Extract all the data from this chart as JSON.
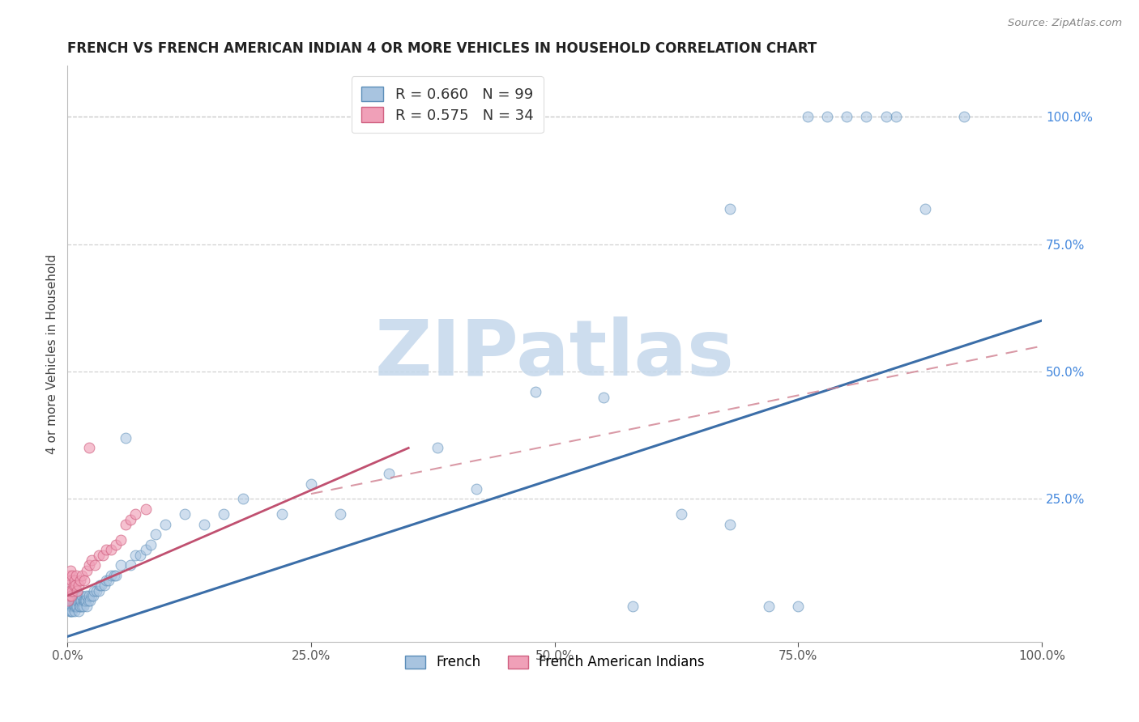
{
  "title": "FRENCH VS FRENCH AMERICAN INDIAN 4 OR MORE VEHICLES IN HOUSEHOLD CORRELATION CHART",
  "source": "Source: ZipAtlas.com",
  "ylabel": "4 or more Vehicles in Household",
  "xlim": [
    0.0,
    1.0
  ],
  "ylim": [
    -0.03,
    1.1
  ],
  "xtick_labels": [
    "0.0%",
    "25.0%",
    "50.0%",
    "75.0%",
    "100.0%"
  ],
  "xtick_vals": [
    0.0,
    0.25,
    0.5,
    0.75,
    1.0
  ],
  "right_ytick_labels": [
    "100.0%",
    "75.0%",
    "50.0%",
    "25.0%"
  ],
  "right_ytick_vals": [
    1.0,
    0.75,
    0.5,
    0.25
  ],
  "french_R": 0.66,
  "french_N": 99,
  "fai_R": 0.575,
  "fai_N": 34,
  "french_face_color": "#A8C4E0",
  "french_edge_color": "#5B8DB8",
  "french_line_color": "#3B6EA8",
  "fai_face_color": "#F0A0B8",
  "fai_edge_color": "#D06080",
  "fai_line_color": "#C05070",
  "fai_dash_color": "#D08090",
  "watermark_text": "ZIPatlas",
  "watermark_color": "#C5D8EC",
  "grid_color": "#CCCCCC",
  "title_color": "#222222",
  "label_color": "#444444",
  "right_axis_color": "#4488DD",
  "french_x": [
    0.001,
    0.001,
    0.002,
    0.002,
    0.002,
    0.002,
    0.003,
    0.003,
    0.003,
    0.003,
    0.004,
    0.004,
    0.004,
    0.004,
    0.005,
    0.005,
    0.005,
    0.005,
    0.006,
    0.006,
    0.006,
    0.007,
    0.007,
    0.007,
    0.008,
    0.008,
    0.008,
    0.009,
    0.009,
    0.01,
    0.01,
    0.01,
    0.011,
    0.011,
    0.012,
    0.012,
    0.013,
    0.013,
    0.014,
    0.015,
    0.015,
    0.016,
    0.016,
    0.017,
    0.018,
    0.019,
    0.02,
    0.02,
    0.021,
    0.022,
    0.023,
    0.025,
    0.026,
    0.027,
    0.03,
    0.032,
    0.033,
    0.035,
    0.038,
    0.04,
    0.042,
    0.045,
    0.048,
    0.05,
    0.055,
    0.06,
    0.065,
    0.07,
    0.075,
    0.08,
    0.085,
    0.09,
    0.1,
    0.12,
    0.14,
    0.16,
    0.18,
    0.22,
    0.25,
    0.28,
    0.33,
    0.38,
    0.42,
    0.48,
    0.55,
    0.58,
    0.63,
    0.68,
    0.75,
    0.78,
    0.82,
    0.85,
    0.88,
    0.92,
    0.68,
    0.72,
    0.76,
    0.8,
    0.84
  ],
  "french_y": [
    0.04,
    0.06,
    0.03,
    0.05,
    0.07,
    0.04,
    0.03,
    0.05,
    0.04,
    0.06,
    0.04,
    0.06,
    0.03,
    0.05,
    0.04,
    0.06,
    0.05,
    0.03,
    0.04,
    0.06,
    0.05,
    0.04,
    0.06,
    0.03,
    0.04,
    0.06,
    0.05,
    0.04,
    0.06,
    0.04,
    0.06,
    0.05,
    0.03,
    0.05,
    0.04,
    0.06,
    0.05,
    0.04,
    0.05,
    0.04,
    0.06,
    0.05,
    0.04,
    0.05,
    0.05,
    0.05,
    0.04,
    0.06,
    0.05,
    0.06,
    0.05,
    0.06,
    0.06,
    0.07,
    0.07,
    0.07,
    0.08,
    0.08,
    0.08,
    0.09,
    0.09,
    0.1,
    0.1,
    0.1,
    0.12,
    0.37,
    0.12,
    0.14,
    0.14,
    0.15,
    0.16,
    0.18,
    0.2,
    0.22,
    0.2,
    0.22,
    0.25,
    0.22,
    0.28,
    0.22,
    0.3,
    0.35,
    0.27,
    0.46,
    0.45,
    0.04,
    0.22,
    0.2,
    0.04,
    1.0,
    1.0,
    1.0,
    0.82,
    1.0,
    0.82,
    0.04,
    1.0,
    1.0,
    1.0
  ],
  "fai_x": [
    0.001,
    0.001,
    0.002,
    0.002,
    0.003,
    0.003,
    0.004,
    0.004,
    0.005,
    0.005,
    0.006,
    0.007,
    0.008,
    0.009,
    0.01,
    0.011,
    0.013,
    0.015,
    0.017,
    0.02,
    0.022,
    0.025,
    0.028,
    0.032,
    0.036,
    0.04,
    0.045,
    0.05,
    0.055,
    0.06,
    0.065,
    0.07,
    0.08,
    0.022
  ],
  "fai_y": [
    0.05,
    0.08,
    0.06,
    0.1,
    0.07,
    0.11,
    0.06,
    0.09,
    0.07,
    0.1,
    0.08,
    0.09,
    0.08,
    0.1,
    0.07,
    0.08,
    0.09,
    0.1,
    0.09,
    0.11,
    0.12,
    0.13,
    0.12,
    0.14,
    0.14,
    0.15,
    0.15,
    0.16,
    0.17,
    0.2,
    0.21,
    0.22,
    0.23,
    0.35
  ]
}
